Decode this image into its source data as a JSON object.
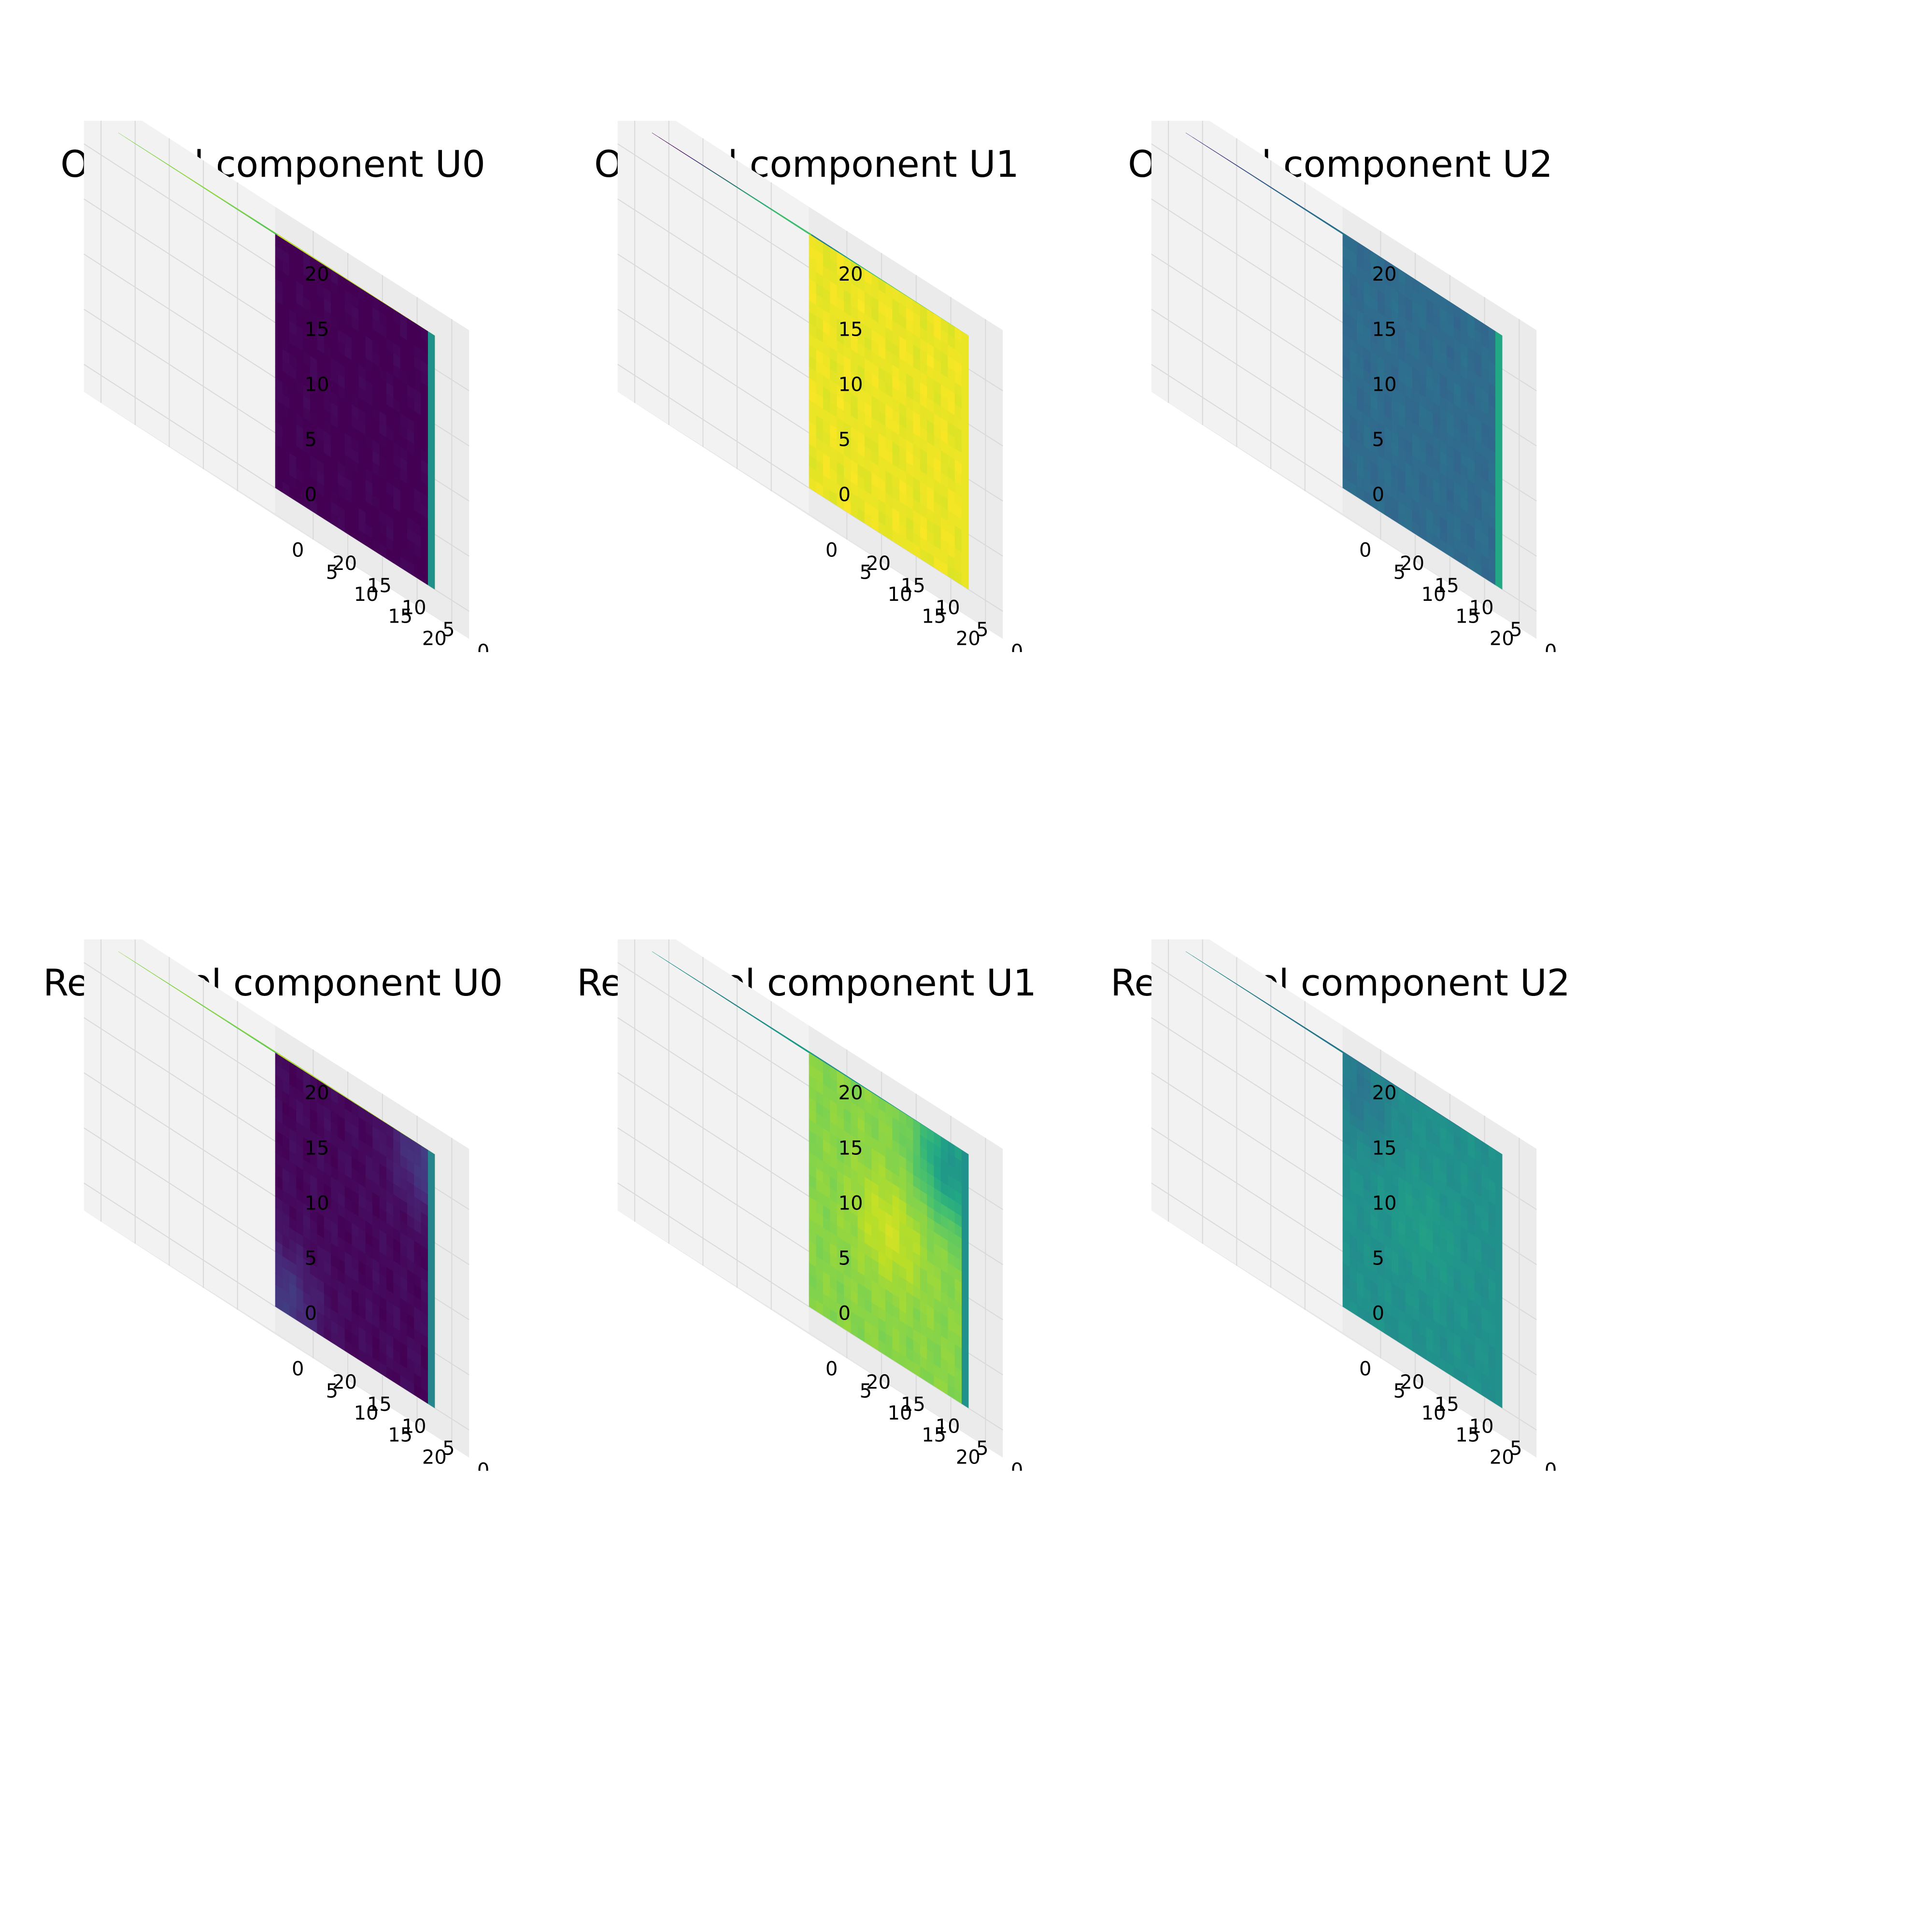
{
  "figure": {
    "colormap": "viridis",
    "background": "#ffffff",
    "pane_color": "#f2f2f2",
    "grid_color": "#d9d9d9"
  },
  "chart_data": [
    {
      "type": "heatmap",
      "plot_style": "3d-voxel-cube",
      "title": "Orig vel component U0",
      "xlim": [
        0,
        23
      ],
      "ylim": [
        0,
        23
      ],
      "zlim": [
        0,
        23
      ],
      "x_ticks": [
        "0",
        "5",
        "10",
        "15",
        "20"
      ],
      "y_ticks": [
        "0",
        "5",
        "10",
        "15",
        "20"
      ],
      "z_ticks": [
        "0",
        "5",
        "10",
        "15",
        "20"
      ],
      "grid": true,
      "faces": {
        "top": {
          "base": 0.8,
          "blobs": [
            [
              0.75,
              0.35,
              -0.25
            ],
            [
              0.3,
              0.3,
              0.1
            ]
          ]
        },
        "left": {
          "base": 0.93,
          "blobs": [
            [
              0.05,
              0.55,
              -0.2
            ],
            [
              0.5,
              0.3,
              0.05
            ]
          ]
        },
        "right": {
          "base": 0.0,
          "blobs": []
        },
        "right_edge_highlight": 0.5
      }
    },
    {
      "type": "heatmap",
      "plot_style": "3d-voxel-cube",
      "title": "Orig vel component U1",
      "xlim": [
        0,
        23
      ],
      "ylim": [
        0,
        23
      ],
      "zlim": [
        0,
        23
      ],
      "x_ticks": [
        "0",
        "5",
        "10",
        "15",
        "20"
      ],
      "y_ticks": [
        "0",
        "5",
        "10",
        "15",
        "20"
      ],
      "z_ticks": [
        "0",
        "5",
        "10",
        "15",
        "20"
      ],
      "grid": true,
      "faces": {
        "top": {
          "base": 0.7,
          "blobs": [
            [
              0.15,
              0.2,
              -0.7
            ],
            [
              0.05,
              0.1,
              -0.7
            ],
            [
              0.9,
              0.8,
              0.3
            ]
          ]
        },
        "left": {
          "base": 0.8,
          "blobs": [
            [
              0.05,
              0.2,
              -0.75
            ],
            [
              0.15,
              0.55,
              -0.45
            ],
            [
              0.3,
              0.3,
              -0.3
            ]
          ]
        },
        "right": {
          "base": 0.97,
          "blobs": []
        },
        "right_edge_highlight": 0.97
      }
    },
    {
      "type": "heatmap",
      "plot_style": "3d-voxel-cube",
      "title": "Orig vel component U2",
      "xlim": [
        0,
        23
      ],
      "ylim": [
        0,
        23
      ],
      "zlim": [
        0,
        23
      ],
      "x_ticks": [
        "0",
        "5",
        "10",
        "15",
        "20"
      ],
      "y_ticks": [
        "0",
        "5",
        "10",
        "15",
        "20"
      ],
      "z_ticks": [
        "0",
        "5",
        "10",
        "15",
        "20"
      ],
      "grid": true,
      "faces": {
        "top": {
          "base": 0.4,
          "blobs": [
            [
              0.1,
              0.15,
              -0.35
            ],
            [
              0.4,
              0.35,
              -0.15
            ],
            [
              0.8,
              0.7,
              0.1
            ]
          ]
        },
        "left": {
          "base": 0.35,
          "blobs": [
            [
              0.05,
              0.5,
              -0.3
            ],
            [
              0.85,
              0.85,
              0.3
            ],
            [
              0.35,
              0.4,
              0.2
            ]
          ]
        },
        "right": {
          "base": 0.35,
          "blobs": []
        },
        "right_edge_highlight": 0.6
      }
    },
    {
      "type": "heatmap",
      "plot_style": "3d-voxel-cube",
      "title": "Recon vel component U0",
      "xlim": [
        0,
        23
      ],
      "ylim": [
        0,
        23
      ],
      "zlim": [
        0,
        23
      ],
      "x_ticks": [
        "0",
        "5",
        "10",
        "15",
        "20"
      ],
      "y_ticks": [
        "0",
        "5",
        "10",
        "15",
        "20"
      ],
      "z_ticks": [
        "0",
        "5",
        "10",
        "15",
        "20"
      ],
      "grid": true,
      "faces": {
        "top": {
          "base": 0.82,
          "blobs": [
            [
              0.8,
              0.3,
              -0.25
            ],
            [
              0.5,
              0.6,
              0.08
            ]
          ]
        },
        "left": {
          "base": 0.9,
          "blobs": [
            [
              0.85,
              0.9,
              -0.2
            ],
            [
              0.3,
              0.3,
              0.05
            ]
          ]
        },
        "right": {
          "base": 0.02,
          "blobs": [
            [
              0.95,
              0.95,
              0.15
            ],
            [
              0.05,
              0.05,
              0.15
            ]
          ]
        },
        "right_edge_highlight": 0.45
      }
    },
    {
      "type": "heatmap",
      "plot_style": "3d-voxel-cube",
      "title": "Recon vel component U1",
      "xlim": [
        0,
        23
      ],
      "ylim": [
        0,
        23
      ],
      "zlim": [
        0,
        23
      ],
      "x_ticks": [
        "0",
        "5",
        "10",
        "15",
        "20"
      ],
      "y_ticks": [
        "0",
        "5",
        "10",
        "15",
        "20"
      ],
      "z_ticks": [
        "0",
        "5",
        "10",
        "15",
        "20"
      ],
      "grid": true,
      "faces": {
        "top": {
          "base": 0.55,
          "blobs": [
            [
              0.15,
              0.3,
              -0.3
            ],
            [
              0.8,
              0.7,
              0.3
            ]
          ]
        },
        "left": {
          "base": 0.55,
          "blobs": [
            [
              0.1,
              0.3,
              -0.2
            ],
            [
              0.75,
              0.75,
              0.35
            ]
          ]
        },
        "right": {
          "base": 0.82,
          "blobs": [
            [
              0.1,
              0.1,
              -0.3
            ],
            [
              0.5,
              0.5,
              0.1
            ]
          ]
        },
        "right_edge_highlight": 0.5
      }
    },
    {
      "type": "heatmap",
      "plot_style": "3d-voxel-cube",
      "title": "Recon vel component U2",
      "xlim": [
        0,
        23
      ],
      "ylim": [
        0,
        23
      ],
      "zlim": [
        0,
        23
      ],
      "x_ticks": [
        "0",
        "5",
        "10",
        "15",
        "20"
      ],
      "y_ticks": [
        "0",
        "5",
        "10",
        "15",
        "20"
      ],
      "z_ticks": [
        "0",
        "5",
        "10",
        "15",
        "20"
      ],
      "grid": true,
      "faces": {
        "top": {
          "base": 0.45,
          "blobs": [
            [
              0.45,
              0.35,
              -0.2
            ],
            [
              0.8,
              0.8,
              0.08
            ]
          ]
        },
        "left": {
          "base": 0.4,
          "blobs": [
            [
              0.25,
              0.4,
              -0.15
            ],
            [
              0.85,
              0.8,
              0.15
            ]
          ]
        },
        "right": {
          "base": 0.5,
          "blobs": [
            [
              0.5,
              0.5,
              0.05
            ],
            [
              0.9,
              0.1,
              -0.1
            ]
          ]
        },
        "right_edge_highlight": 0.5
      }
    }
  ]
}
